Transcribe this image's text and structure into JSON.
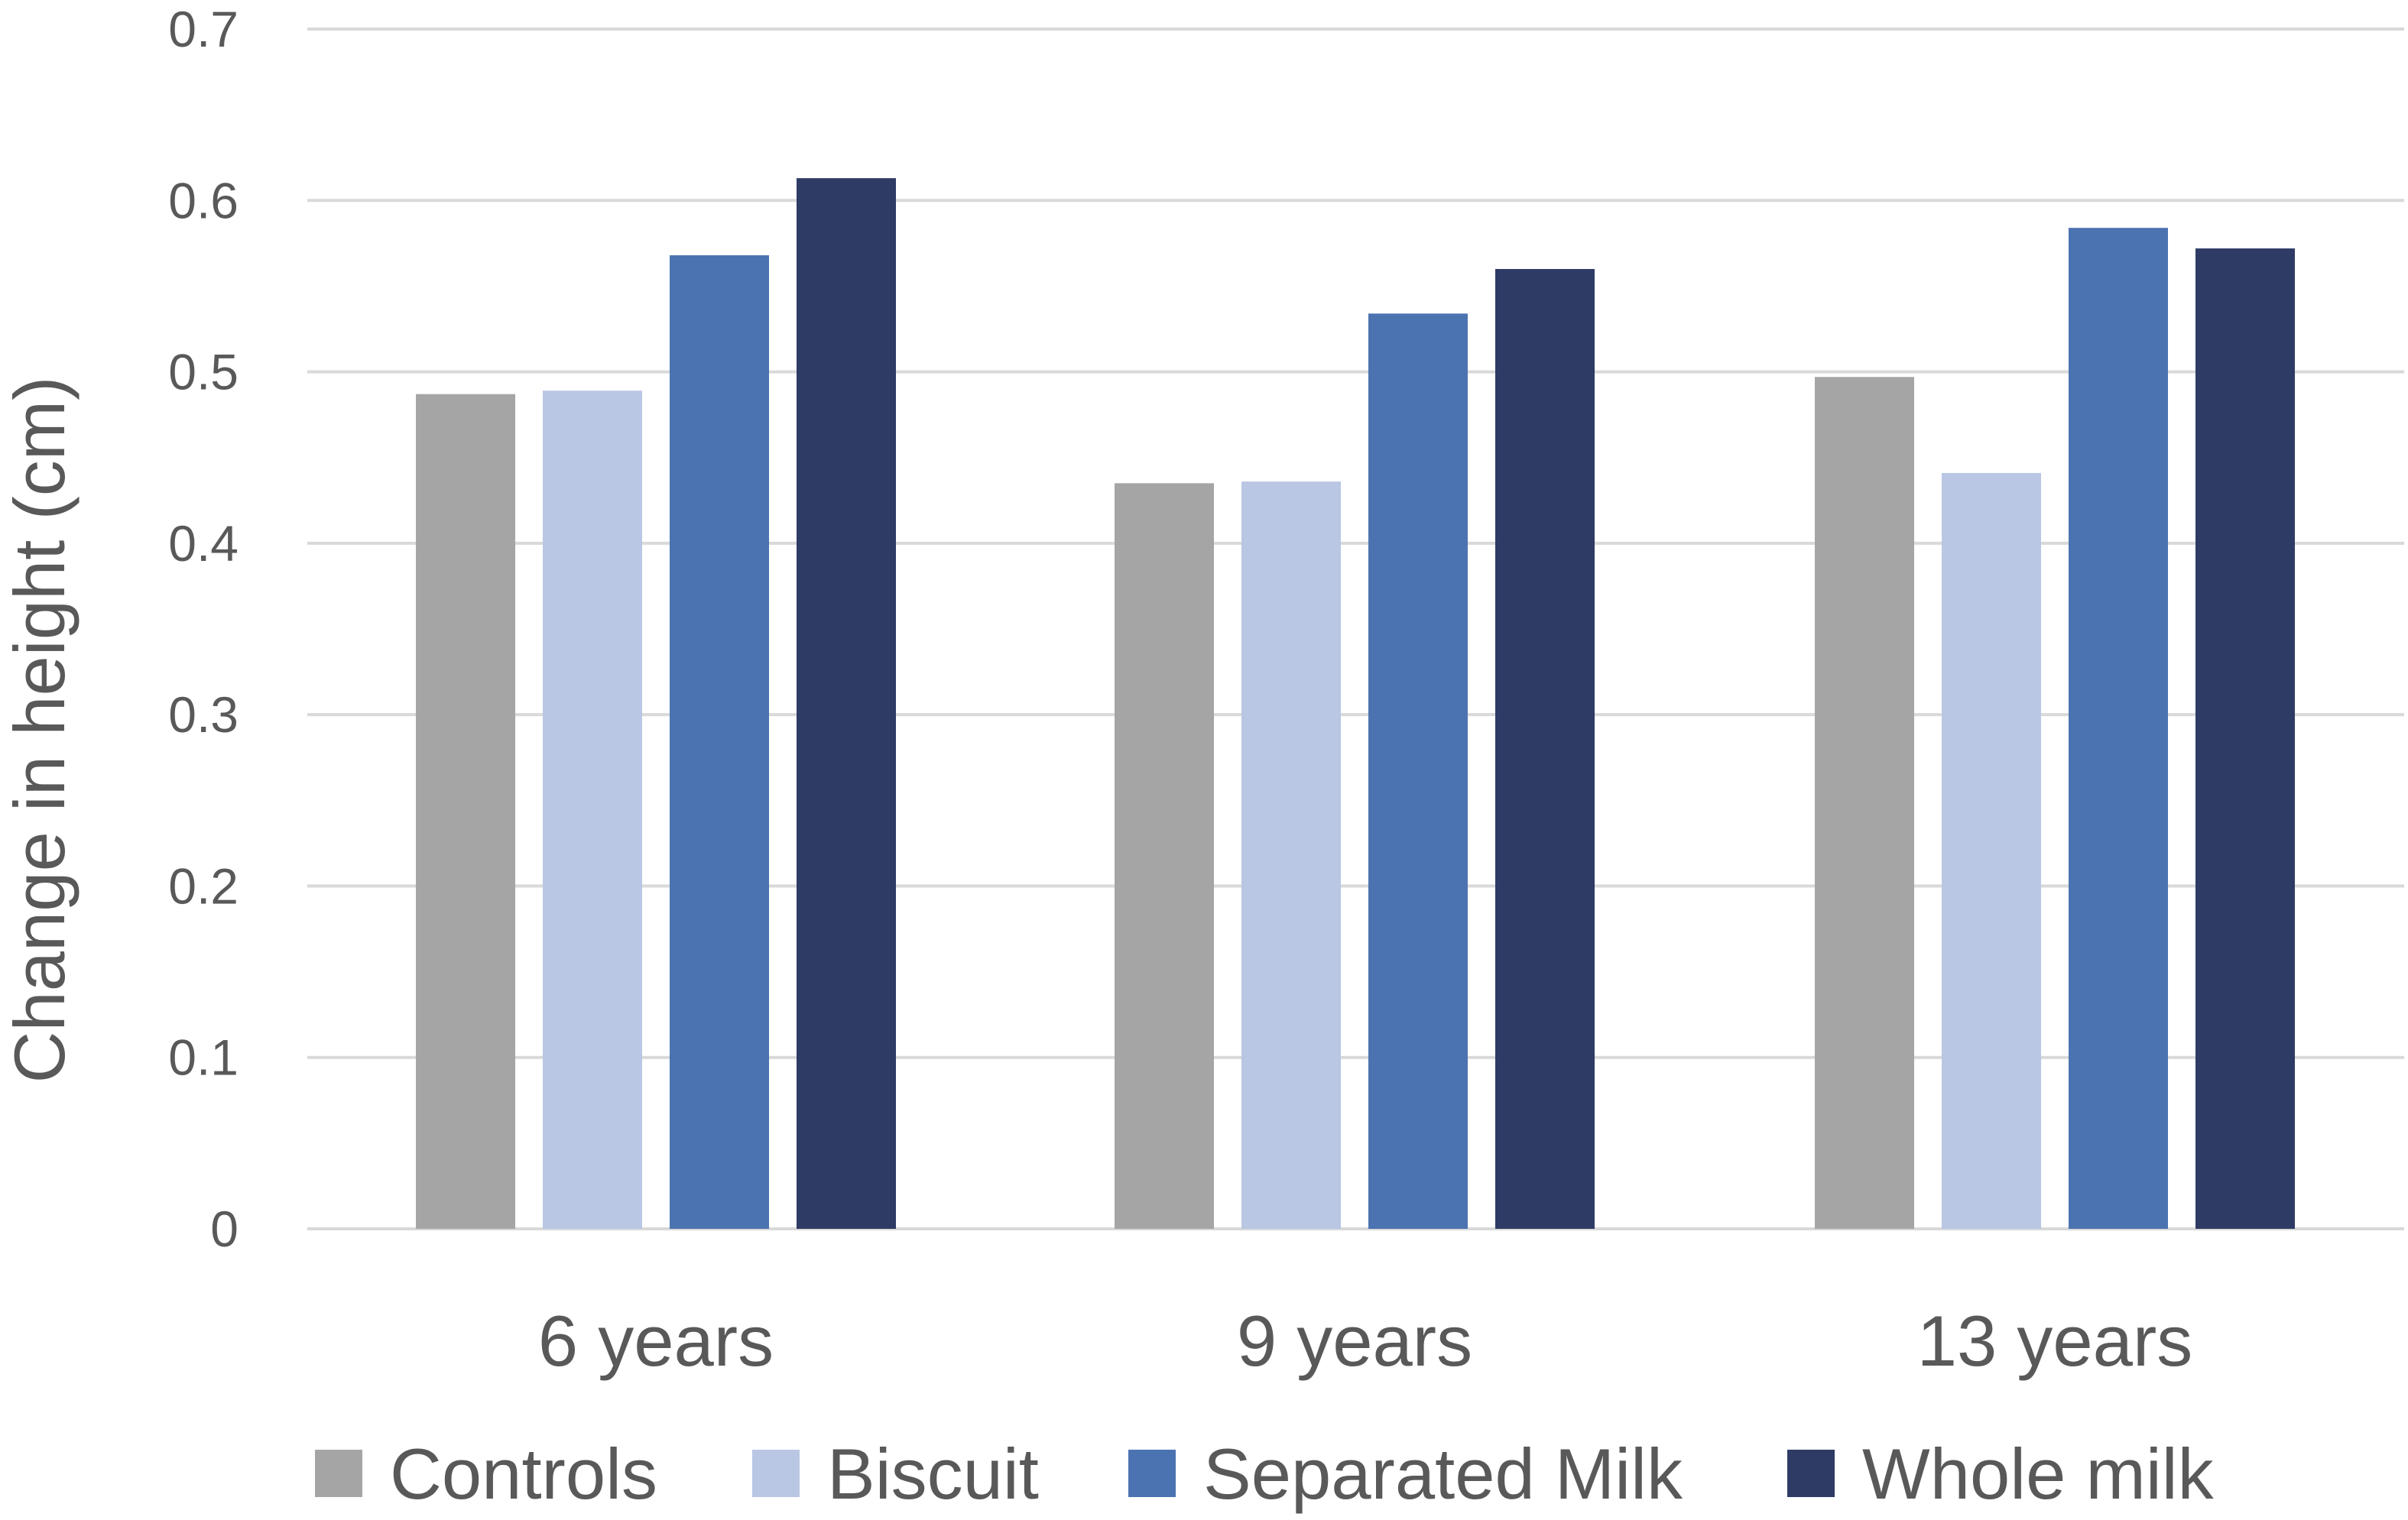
{
  "chart_data": {
    "type": "bar",
    "title": "",
    "xlabel": "",
    "ylabel": "Change in height (cm)",
    "ylim": [
      0,
      0.7
    ],
    "yticks": [
      "0",
      "0.1",
      "0.2",
      "0.3",
      "0.4",
      "0.5",
      "0.6",
      "0.7"
    ],
    "grid": true,
    "legend_position": "bottom",
    "categories": [
      "6 years",
      "9 years",
      "13 years"
    ],
    "series": [
      {
        "name": "Controls",
        "color": "#a5a5a5",
        "values": [
          0.487,
          0.435,
          0.497
        ]
      },
      {
        "name": "Biscuit",
        "color": "#b9c6e4",
        "values": [
          0.489,
          0.436,
          0.441
        ]
      },
      {
        "name": "Separated Milk",
        "color": "#4c73b1",
        "values": [
          0.568,
          0.534,
          0.584
        ]
      },
      {
        "name": "Whole milk",
        "color": "#2e3b65",
        "values": [
          0.613,
          0.56,
          0.572
        ]
      }
    ]
  }
}
